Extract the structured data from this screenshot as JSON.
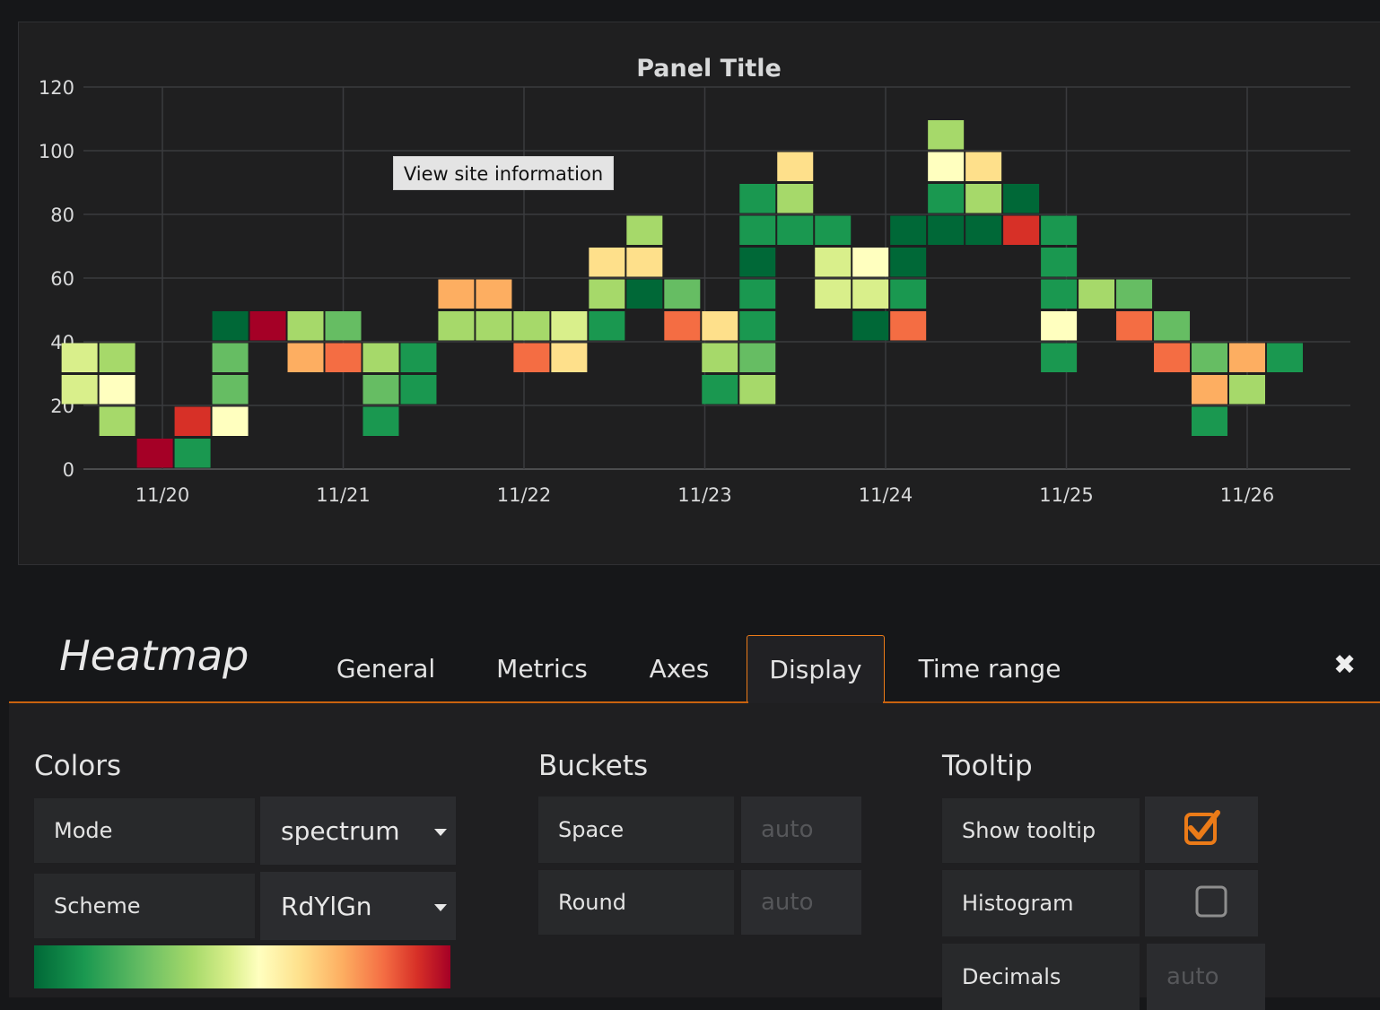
{
  "panel": {
    "title": "Panel Title",
    "tooltip": "View site information"
  },
  "chart_data": {
    "type": "heatmap",
    "title": "Panel Title",
    "x_ticks": [
      "11/20",
      "11/21",
      "11/22",
      "11/23",
      "11/24",
      "11/25",
      "11/26"
    ],
    "y_ticks": [
      0,
      20,
      40,
      60,
      80,
      100,
      120
    ],
    "ylim": [
      0,
      120
    ],
    "bucket_size": 10,
    "grid": true,
    "colorscale": {
      "0": "#a50026",
      "1": "#d73027",
      "2": "#f46d43",
      "3": "#fdae61",
      "4": "#fee08b",
      "5": "#ffffbf",
      "6": "#d9ef8b",
      "7": "#a6d96a",
      "8": "#66bd63",
      "9": "#1a9850",
      "10": "#006837"
    },
    "columns": [
      {
        "x": "11/19 13:00",
        "cells": [
          [
            20,
            6
          ],
          [
            30,
            6
          ]
        ]
      },
      {
        "x": "11/19 18:00",
        "cells": [
          [
            10,
            7
          ],
          [
            20,
            5
          ],
          [
            30,
            7
          ]
        ]
      },
      {
        "x": "11/19 23:00",
        "cells": [
          [
            0,
            0
          ]
        ]
      },
      {
        "x": "11/20 04:00",
        "cells": [
          [
            0,
            9
          ],
          [
            10,
            1
          ]
        ]
      },
      {
        "x": "11/20 09:00",
        "cells": [
          [
            10,
            5
          ],
          [
            20,
            8
          ],
          [
            30,
            8
          ],
          [
            40,
            10
          ]
        ]
      },
      {
        "x": "11/20 14:00",
        "cells": [
          [
            40,
            0
          ]
        ]
      },
      {
        "x": "11/20 19:00",
        "cells": [
          [
            30,
            3
          ],
          [
            40,
            7
          ]
        ]
      },
      {
        "x": "11/21 00:00",
        "cells": [
          [
            30,
            2
          ],
          [
            40,
            8
          ]
        ]
      },
      {
        "x": "11/21 05:00",
        "cells": [
          [
            10,
            9
          ],
          [
            20,
            8
          ],
          [
            30,
            7
          ]
        ]
      },
      {
        "x": "11/21 10:00",
        "cells": [
          [
            20,
            9
          ],
          [
            30,
            9
          ]
        ]
      },
      {
        "x": "11/21 15:00",
        "cells": [
          [
            40,
            7
          ],
          [
            50,
            3
          ]
        ]
      },
      {
        "x": "11/21 20:00",
        "cells": [
          [
            40,
            7
          ],
          [
            50,
            3
          ]
        ]
      },
      {
        "x": "11/22 01:00",
        "cells": [
          [
            30,
            2
          ],
          [
            40,
            7
          ]
        ]
      },
      {
        "x": "11/22 06:00",
        "cells": [
          [
            30,
            4
          ],
          [
            40,
            6
          ]
        ]
      },
      {
        "x": "11/22 11:00",
        "cells": [
          [
            40,
            9
          ],
          [
            50,
            7
          ],
          [
            60,
            4
          ]
        ]
      },
      {
        "x": "11/22 16:00",
        "cells": [
          [
            50,
            10
          ],
          [
            60,
            4
          ],
          [
            70,
            7
          ]
        ]
      },
      {
        "x": "11/22 21:00",
        "cells": [
          [
            40,
            2
          ],
          [
            50,
            8
          ]
        ]
      },
      {
        "x": "11/23 02:00",
        "cells": [
          [
            20,
            9
          ],
          [
            30,
            7
          ],
          [
            40,
            4
          ]
        ]
      },
      {
        "x": "11/23 07:00",
        "cells": [
          [
            20,
            7
          ],
          [
            30,
            8
          ],
          [
            40,
            9
          ],
          [
            50,
            9
          ],
          [
            60,
            10
          ],
          [
            70,
            9
          ],
          [
            80,
            9
          ]
        ]
      },
      {
        "x": "11/23 12:00",
        "cells": [
          [
            70,
            9
          ],
          [
            80,
            7
          ],
          [
            90,
            4
          ]
        ]
      },
      {
        "x": "11/23 17:00",
        "cells": [
          [
            50,
            6
          ],
          [
            60,
            6
          ],
          [
            70,
            9
          ]
        ]
      },
      {
        "x": "11/23 22:00",
        "cells": [
          [
            40,
            10
          ],
          [
            50,
            6
          ],
          [
            60,
            5
          ]
        ]
      },
      {
        "x": "11/24 03:00",
        "cells": [
          [
            40,
            2
          ],
          [
            50,
            9
          ],
          [
            60,
            10
          ],
          [
            70,
            10
          ]
        ]
      },
      {
        "x": "11/24 08:00",
        "cells": [
          [
            70,
            10
          ],
          [
            80,
            9
          ],
          [
            90,
            5
          ],
          [
            100,
            7
          ]
        ]
      },
      {
        "x": "11/24 13:00",
        "cells": [
          [
            70,
            10
          ],
          [
            80,
            7
          ],
          [
            90,
            4
          ]
        ]
      },
      {
        "x": "11/24 18:00",
        "cells": [
          [
            70,
            1
          ],
          [
            80,
            10
          ]
        ]
      },
      {
        "x": "11/24 23:00",
        "cells": [
          [
            30,
            9
          ],
          [
            40,
            5
          ],
          [
            50,
            9
          ],
          [
            60,
            9
          ],
          [
            70,
            9
          ]
        ]
      },
      {
        "x": "11/25 04:00",
        "cells": [
          [
            50,
            7
          ]
        ]
      },
      {
        "x": "11/25 09:00",
        "cells": [
          [
            40,
            2
          ],
          [
            50,
            8
          ]
        ]
      },
      {
        "x": "11/25 14:00",
        "cells": [
          [
            30,
            2
          ],
          [
            40,
            8
          ]
        ]
      },
      {
        "x": "11/25 19:00",
        "cells": [
          [
            10,
            9
          ],
          [
            20,
            3
          ],
          [
            30,
            8
          ]
        ]
      },
      {
        "x": "11/26 00:00",
        "cells": [
          [
            20,
            7
          ],
          [
            30,
            3
          ]
        ]
      },
      {
        "x": "11/26 05:00",
        "cells": [
          [
            30,
            9
          ]
        ]
      }
    ]
  },
  "editor": {
    "title": "Heatmap",
    "tabs": [
      "General",
      "Metrics",
      "Axes",
      "Display",
      "Time range"
    ],
    "active_tab": "Display",
    "close_icon": "close-icon"
  },
  "colors": {
    "title": "Colors",
    "mode_label": "Mode",
    "mode_value": "spectrum",
    "scheme_label": "Scheme",
    "scheme_value": "RdYlGn"
  },
  "buckets": {
    "title": "Buckets",
    "space_label": "Space",
    "space_placeholder": "auto",
    "round_label": "Round",
    "round_placeholder": "auto"
  },
  "tooltip_section": {
    "title": "Tooltip",
    "show_tooltip_label": "Show tooltip",
    "show_tooltip_checked": true,
    "histogram_label": "Histogram",
    "histogram_checked": false,
    "decimals_label": "Decimals",
    "decimals_placeholder": "auto"
  },
  "accent_color": "#eb7b18"
}
